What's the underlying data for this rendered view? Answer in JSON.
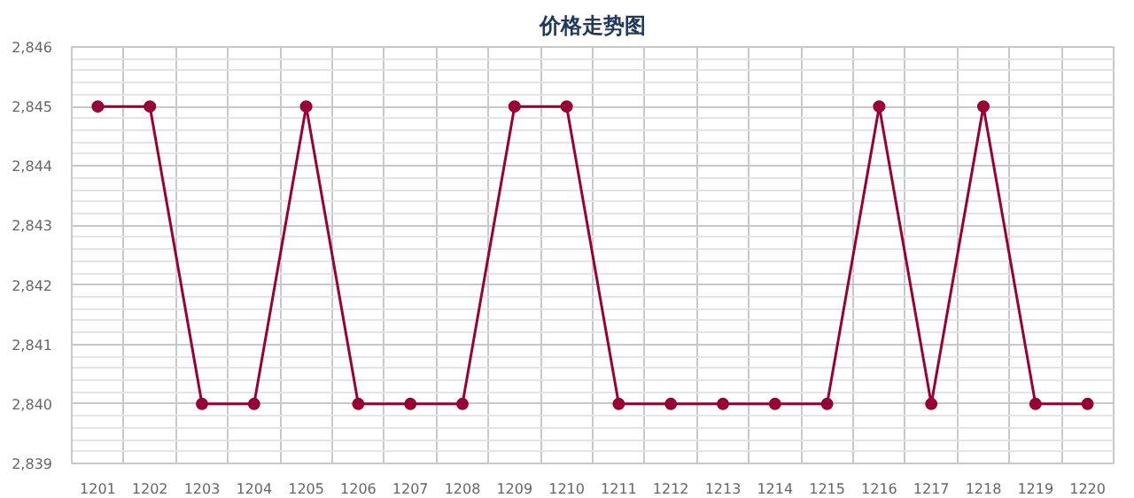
{
  "chart_data": {
    "type": "line",
    "title": "价格走势图",
    "categories": [
      "1201",
      "1202",
      "1203",
      "1204",
      "1205",
      "1206",
      "1207",
      "1208",
      "1209",
      "1210",
      "1211",
      "1212",
      "1213",
      "1214",
      "1215",
      "1216",
      "1217",
      "1218",
      "1219",
      "1220"
    ],
    "series": [
      {
        "color": "#990033",
        "values": [
          2845,
          2845,
          2840,
          2840,
          2845,
          2840,
          2840,
          2840,
          2845,
          2845,
          2840,
          2840,
          2840,
          2840,
          2840,
          2845,
          2840,
          2845,
          2840,
          2840
        ]
      }
    ],
    "ylim": [
      2839,
      2846
    ],
    "yticks": [
      {
        "value": 2839,
        "label": "2,839"
      },
      {
        "value": 2840,
        "label": "2,840"
      },
      {
        "value": 2841,
        "label": "2,841"
      },
      {
        "value": 2842,
        "label": "2,842"
      },
      {
        "value": 2843,
        "label": "2,843"
      },
      {
        "value": 2844,
        "label": "2,844"
      },
      {
        "value": 2845,
        "label": "2,845"
      },
      {
        "value": 2846,
        "label": "2,846"
      }
    ],
    "grid": true,
    "marker": "circle",
    "line_style": "solid"
  }
}
